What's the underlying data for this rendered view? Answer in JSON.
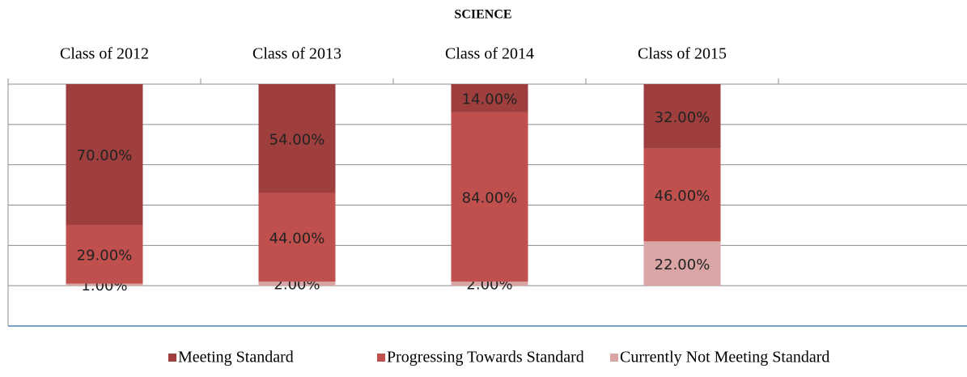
{
  "chart_data": {
    "type": "stacked_bar",
    "title": "SCIENCE",
    "categories": [
      "Class of 2012",
      "Class of 2013",
      "Class of 2014",
      "Class of 2015",
      null
    ],
    "series": [
      {
        "name": "Currently Not Meeting Standard",
        "color": "#d9a5a5",
        "values": [
          1,
          2,
          2,
          22,
          null
        ],
        "value_labels": [
          "1.00%",
          "2.00%",
          "2.00%",
          "22.00%",
          null
        ]
      },
      {
        "name": "Progressing Towards Standard",
        "color": "#c0504d",
        "values": [
          29,
          44,
          84,
          46,
          null
        ],
        "value_labels": [
          "29.00%",
          "44.00%",
          "84.00%",
          "46.00%",
          null
        ]
      },
      {
        "name": "Meeting Standard",
        "color": "#9e3f3e",
        "values": [
          70,
          54,
          14,
          32,
          null
        ],
        "value_labels": [
          "70.00%",
          "54.00%",
          "14.00%",
          "32.00%",
          null
        ]
      }
    ],
    "ylim": [
      -20,
      100
    ],
    "yticks": [
      -20,
      0,
      20,
      40,
      60,
      80,
      100
    ],
    "grid": true,
    "legend": "bottom"
  }
}
